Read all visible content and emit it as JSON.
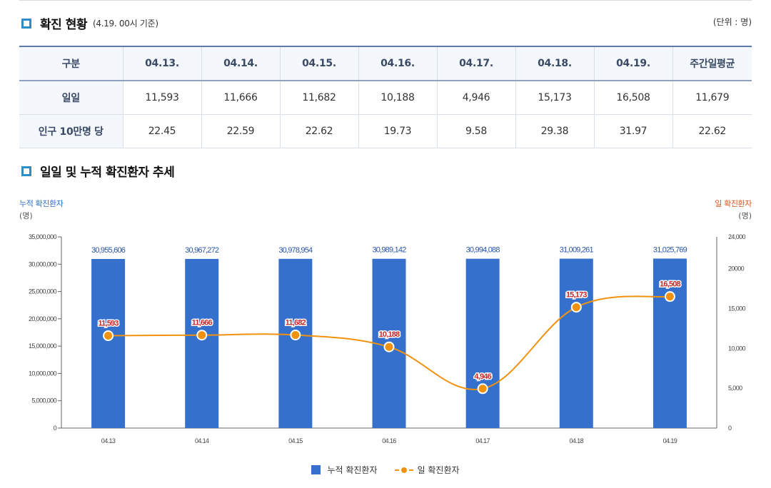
{
  "section1": {
    "title": "확진 현황",
    "subtitle": "(4.19. 00시 기준)",
    "unit": "(단위 : 명)"
  },
  "table": {
    "headers": [
      "구분",
      "04.13.",
      "04.14.",
      "04.15.",
      "04.16.",
      "04.17.",
      "04.18.",
      "04.19.",
      "주간일평균"
    ],
    "rows": [
      {
        "label": "일일",
        "values": [
          "11,593",
          "11,666",
          "11,682",
          "10,188",
          "4,946",
          "15,173",
          "16,508",
          "11,679"
        ]
      },
      {
        "label": "인구 10만명 당",
        "values": [
          "22.45",
          "22.59",
          "22.62",
          "19.73",
          "9.58",
          "29.38",
          "31.97",
          "22.62"
        ]
      }
    ]
  },
  "section2": {
    "title": "일일 및 누적 확진환자 추세"
  },
  "colors": {
    "bar": "#3571cc",
    "line": "#f0920f",
    "label_red": "#c62828",
    "accent": "#2a8fc9"
  },
  "chart_data": {
    "type": "bar",
    "categories": [
      "04.13",
      "04.14",
      "04.15",
      "04.16",
      "04.17",
      "04.18",
      "04.19"
    ],
    "series": [
      {
        "name": "누적 확진환자",
        "type": "bar",
        "axis": "left",
        "values": [
          30955606,
          30967272,
          30978954,
          30989142,
          30994088,
          31009261,
          31025769
        ],
        "labels": [
          "30,955,606",
          "30,967,272",
          "30,978,954",
          "30,989,142",
          "30,994,088",
          "31,009,261",
          "31,025,769"
        ]
      },
      {
        "name": "일 확진환자",
        "type": "line",
        "axis": "right",
        "values": [
          11593,
          11666,
          11682,
          10188,
          4946,
          15173,
          16508
        ],
        "labels": [
          "11,593",
          "11,666",
          "11,682",
          "10,188",
          "4,946",
          "15,173",
          "16,508"
        ]
      }
    ],
    "left_axis": {
      "title": "누적 확진환자",
      "unit": "(명)",
      "ylim": [
        0,
        35000000
      ],
      "ticks": [
        0,
        5000000,
        10000000,
        15000000,
        20000000,
        25000000,
        30000000,
        35000000
      ],
      "tick_labels": [
        "0",
        "5,000,000",
        "10,000,000",
        "15,000,000",
        "20,000,000",
        "25,000,000",
        "30,000,000",
        "35,000,000"
      ]
    },
    "right_axis": {
      "title": "일 확진환자",
      "unit": "(명)",
      "ylim": [
        0,
        24000
      ],
      "ticks": [
        0,
        5000,
        10000,
        15000,
        20000,
        24000
      ],
      "tick_labels": [
        "0",
        "5,000",
        "10,000",
        "15,000",
        "20000",
        "24,000"
      ]
    },
    "legend": [
      "누적 확진환자",
      "일 확진환자"
    ],
    "legend_position": "bottom"
  }
}
